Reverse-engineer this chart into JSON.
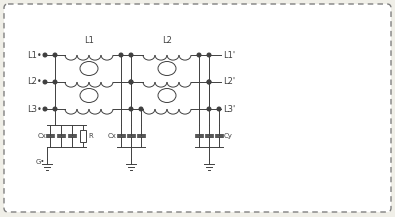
{
  "bg_color": "#f0efe8",
  "line_color": "#404040",
  "box_bg": "#ffffff",
  "fig_w": 3.95,
  "fig_h": 2.17,
  "dpi": 100,
  "labels": {
    "L1_in": "L1",
    "L2_in": "L2",
    "L3_in": "L3",
    "L1_out": "L1'",
    "L2_out": "L2'",
    "L3_out": "L3'",
    "L1_top": "L1",
    "L2_top": "L2",
    "Cx_left": "Cx",
    "R_label": "R",
    "Cx_mid": "Cx",
    "Cy_label": "Cy",
    "G_label": "G"
  }
}
